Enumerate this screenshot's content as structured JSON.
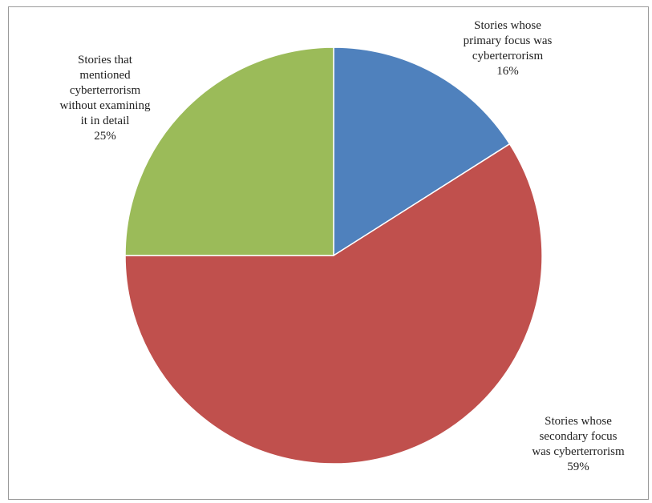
{
  "chart_data": {
    "type": "pie",
    "start_angle_deg": 0,
    "direction": "clockwise",
    "slices": [
      {
        "label_lines": [
          "Stories whose",
          "primary focus was",
          "cyberterrorism"
        ],
        "value": 16,
        "percent_label": "16%",
        "color": "#4f81bd"
      },
      {
        "label_lines": [
          "Stories whose",
          "secondary focus",
          "was cyberterrorism"
        ],
        "value": 59,
        "percent_label": "59%",
        "color": "#c0504d"
      },
      {
        "label_lines": [
          "Stories that",
          "mentioned",
          "cyberterrorism",
          "without examining",
          "it in detail"
        ],
        "value": 25,
        "percent_label": "25%",
        "color": "#9bbb59"
      }
    ]
  }
}
